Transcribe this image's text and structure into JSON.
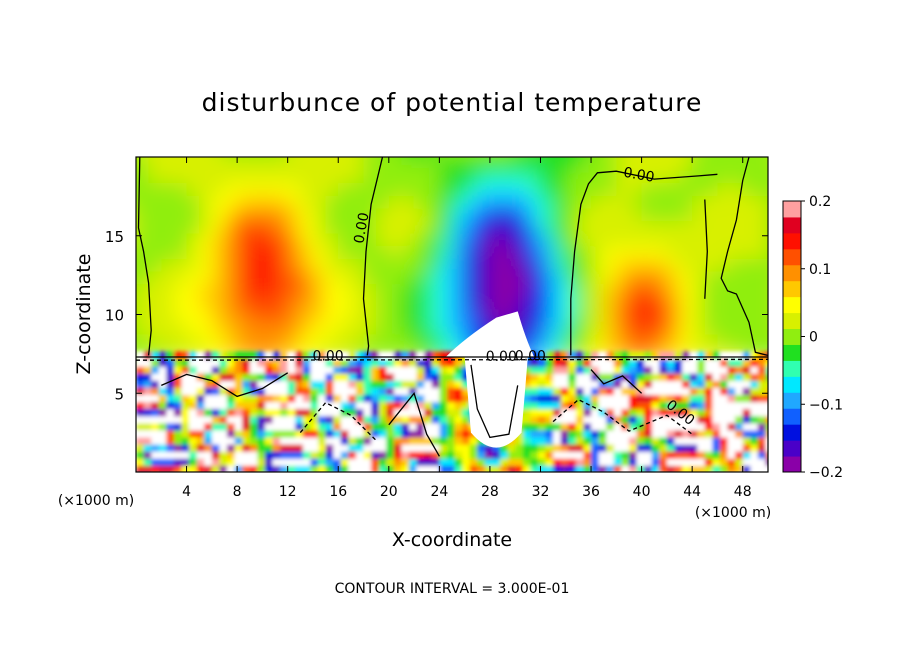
{
  "chart_data": {
    "type": "heatmap",
    "title": "disturbunce of potential temperature",
    "xlabel": "X-coordinate",
    "ylabel": "Z-coordinate",
    "x_unit_left": "(×1000 m)",
    "x_unit_right": "(×1000 m)",
    "footer": "CONTOUR INTERVAL = 3.000E-01",
    "xlim": [
      0,
      50
    ],
    "ylim": [
      0,
      20
    ],
    "x_ticks": [
      4,
      8,
      12,
      16,
      20,
      24,
      28,
      32,
      36,
      40,
      44,
      48
    ],
    "y_ticks": [
      5,
      10,
      15
    ],
    "colorbar": {
      "min": -0.2,
      "max": 0.2,
      "ticks": [
        "0.2",
        "0.1",
        "0",
        "−0.1",
        "−0.2"
      ],
      "colors": [
        "#8a00a8",
        "#4a00c8",
        "#0010e0",
        "#1060ff",
        "#20a8ff",
        "#00e8ff",
        "#30ffb0",
        "#20e020",
        "#90ee10",
        "#d8f000",
        "#ffff00",
        "#ffc800",
        "#ff9000",
        "#ff5000",
        "#ff1000",
        "#e00020",
        "#ffa0a0"
      ]
    },
    "contour_labels": [
      "0.00",
      "0.00",
      "0.00",
      "0.00",
      "0.00",
      "0.00"
    ],
    "features": [
      {
        "kind": "warm-core",
        "x": 10,
        "z": 12.2,
        "value": 0.12
      },
      {
        "kind": "cold-core",
        "x": 29,
        "z": 10,
        "value": -0.2
      },
      {
        "kind": "warm-core",
        "x": 40,
        "z": 9.5,
        "value": 0.11
      }
    ]
  }
}
